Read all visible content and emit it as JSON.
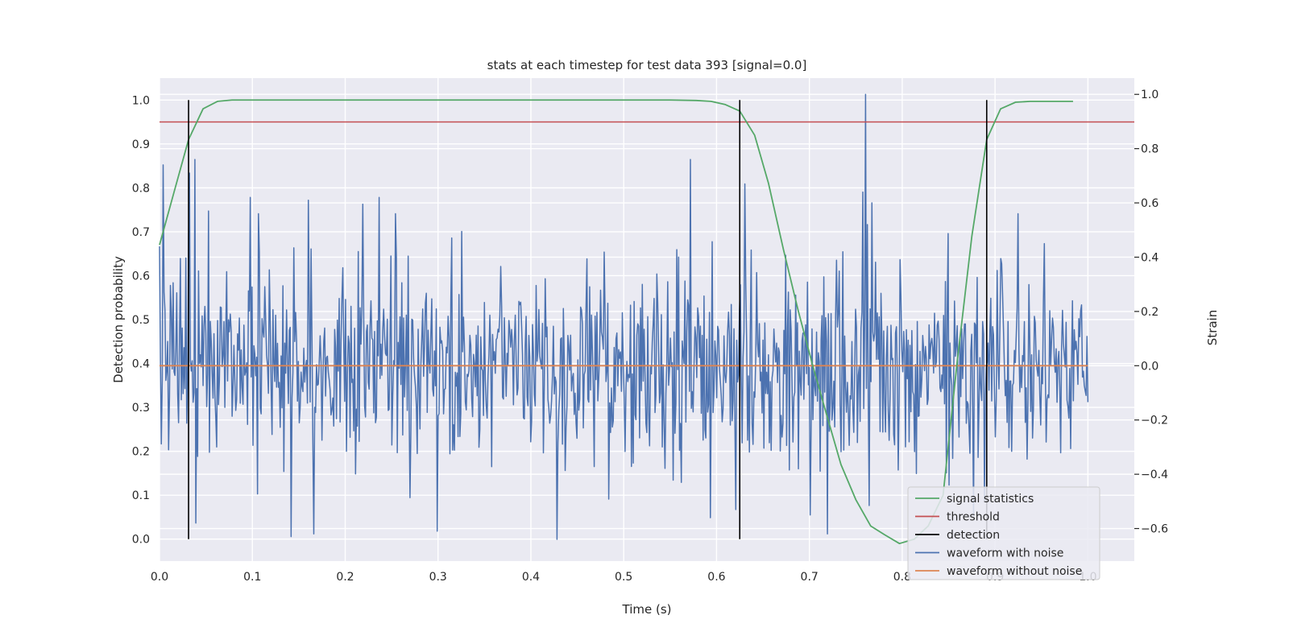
{
  "chart_data": {
    "type": "line",
    "title": "stats at each timestep for test data 393 [signal=0.0]",
    "xlabel": "Time (s)",
    "ylabel_left": "Detection probability",
    "ylabel_right": "Strain",
    "xlim": [
      0.0,
      1.05
    ],
    "ylim_left": [
      -0.05,
      1.05
    ],
    "ylim_right": [
      -0.72,
      1.06
    ],
    "x_ticks": [
      "0.0",
      "0.1",
      "0.2",
      "0.3",
      "0.4",
      "0.5",
      "0.6",
      "0.7",
      "0.8",
      "0.9",
      "1.0"
    ],
    "y_left_ticks": [
      "0.0",
      "0.1",
      "0.2",
      "0.3",
      "0.4",
      "0.5",
      "0.6",
      "0.7",
      "0.8",
      "0.9",
      "1.0"
    ],
    "y_right_ticks": [
      "−0.6",
      "−0.4",
      "−0.2",
      "0.0",
      "0.2",
      "0.4",
      "0.6",
      "0.8",
      "1.0"
    ],
    "grid": true,
    "legend_position": "bottom-right",
    "series": [
      {
        "name": "signal statistics",
        "color": "#55a868",
        "axis": "left",
        "x": [
          0.0,
          0.0156,
          0.0313,
          0.0469,
          0.0625,
          0.0781,
          0.1,
          0.2,
          0.3,
          0.4,
          0.5,
          0.55,
          0.578,
          0.594,
          0.609,
          0.625,
          0.641,
          0.656,
          0.672,
          0.688,
          0.703,
          0.719,
          0.734,
          0.75,
          0.766,
          0.781,
          0.797,
          0.813,
          0.828,
          0.844,
          0.859,
          0.875,
          0.891,
          0.906,
          0.922,
          0.938,
          0.953,
          0.969,
          0.984
        ],
        "y": [
          0.67,
          0.79,
          0.91,
          0.98,
          0.997,
          1.0,
          1.0,
          1.0,
          1.0,
          1.0,
          1.0,
          1.0,
          0.999,
          0.997,
          0.99,
          0.975,
          0.92,
          0.81,
          0.66,
          0.52,
          0.4,
          0.28,
          0.17,
          0.09,
          0.03,
          0.01,
          -0.01,
          0.0,
          0.03,
          0.1,
          0.4,
          0.69,
          0.91,
          0.98,
          0.995,
          0.997,
          0.997,
          0.997,
          0.997
        ]
      },
      {
        "name": "threshold",
        "color": "#c44e52",
        "axis": "left",
        "x": [
          0.0,
          1.05
        ],
        "y": [
          0.95,
          0.95
        ]
      },
      {
        "name": "detection",
        "color": "#000000",
        "axis": "left",
        "vlines": [
          0.0313,
          0.625,
          0.891
        ],
        "y_range": [
          0.0,
          1.0
        ]
      },
      {
        "name": "waveform with noise",
        "color": "#4c72b0",
        "axis": "right",
        "generated": {
          "n": 1024,
          "x_start": 0.0,
          "x_end": 1.0,
          "sigma": 0.19,
          "seed": 393,
          "peaks": [
            [
              0.0,
              0.44
            ],
            [
              0.0039,
              0.74
            ],
            [
              0.0098,
              -0.31
            ],
            [
              0.0322,
              0.71
            ],
            [
              0.0381,
              0.76
            ],
            [
              0.0391,
              -0.58
            ],
            [
              0.0527,
              0.57
            ],
            [
              0.1064,
              0.56
            ],
            [
              0.1416,
              -0.63
            ],
            [
              0.1602,
              0.61
            ],
            [
              0.166,
              -0.62
            ],
            [
              0.2988,
              -0.61
            ],
            [
              0.2539,
              0.56
            ],
            [
              0.4277,
              -0.64
            ],
            [
              0.5723,
              0.76
            ],
            [
              0.5938,
              -0.56
            ],
            [
              0.6211,
              -0.53
            ],
            [
              0.6309,
              0.67
            ],
            [
              0.6885,
              -0.38
            ],
            [
              0.7197,
              -0.62
            ],
            [
              0.7363,
              0.42
            ],
            [
              0.7578,
              0.64
            ],
            [
              0.7607,
              1.0
            ],
            [
              0.7627,
              0.52
            ],
            [
              0.7676,
              0.6
            ],
            [
              0.8506,
              -0.44
            ],
            [
              0.9248,
              0.56
            ],
            [
              0.9531,
              0.45
            ]
          ]
        }
      },
      {
        "name": "waveform without noise",
        "color": "#dd8452",
        "axis": "right",
        "x": [
          0.0,
          1.0
        ],
        "y": [
          0.0,
          0.0
        ]
      }
    ]
  }
}
